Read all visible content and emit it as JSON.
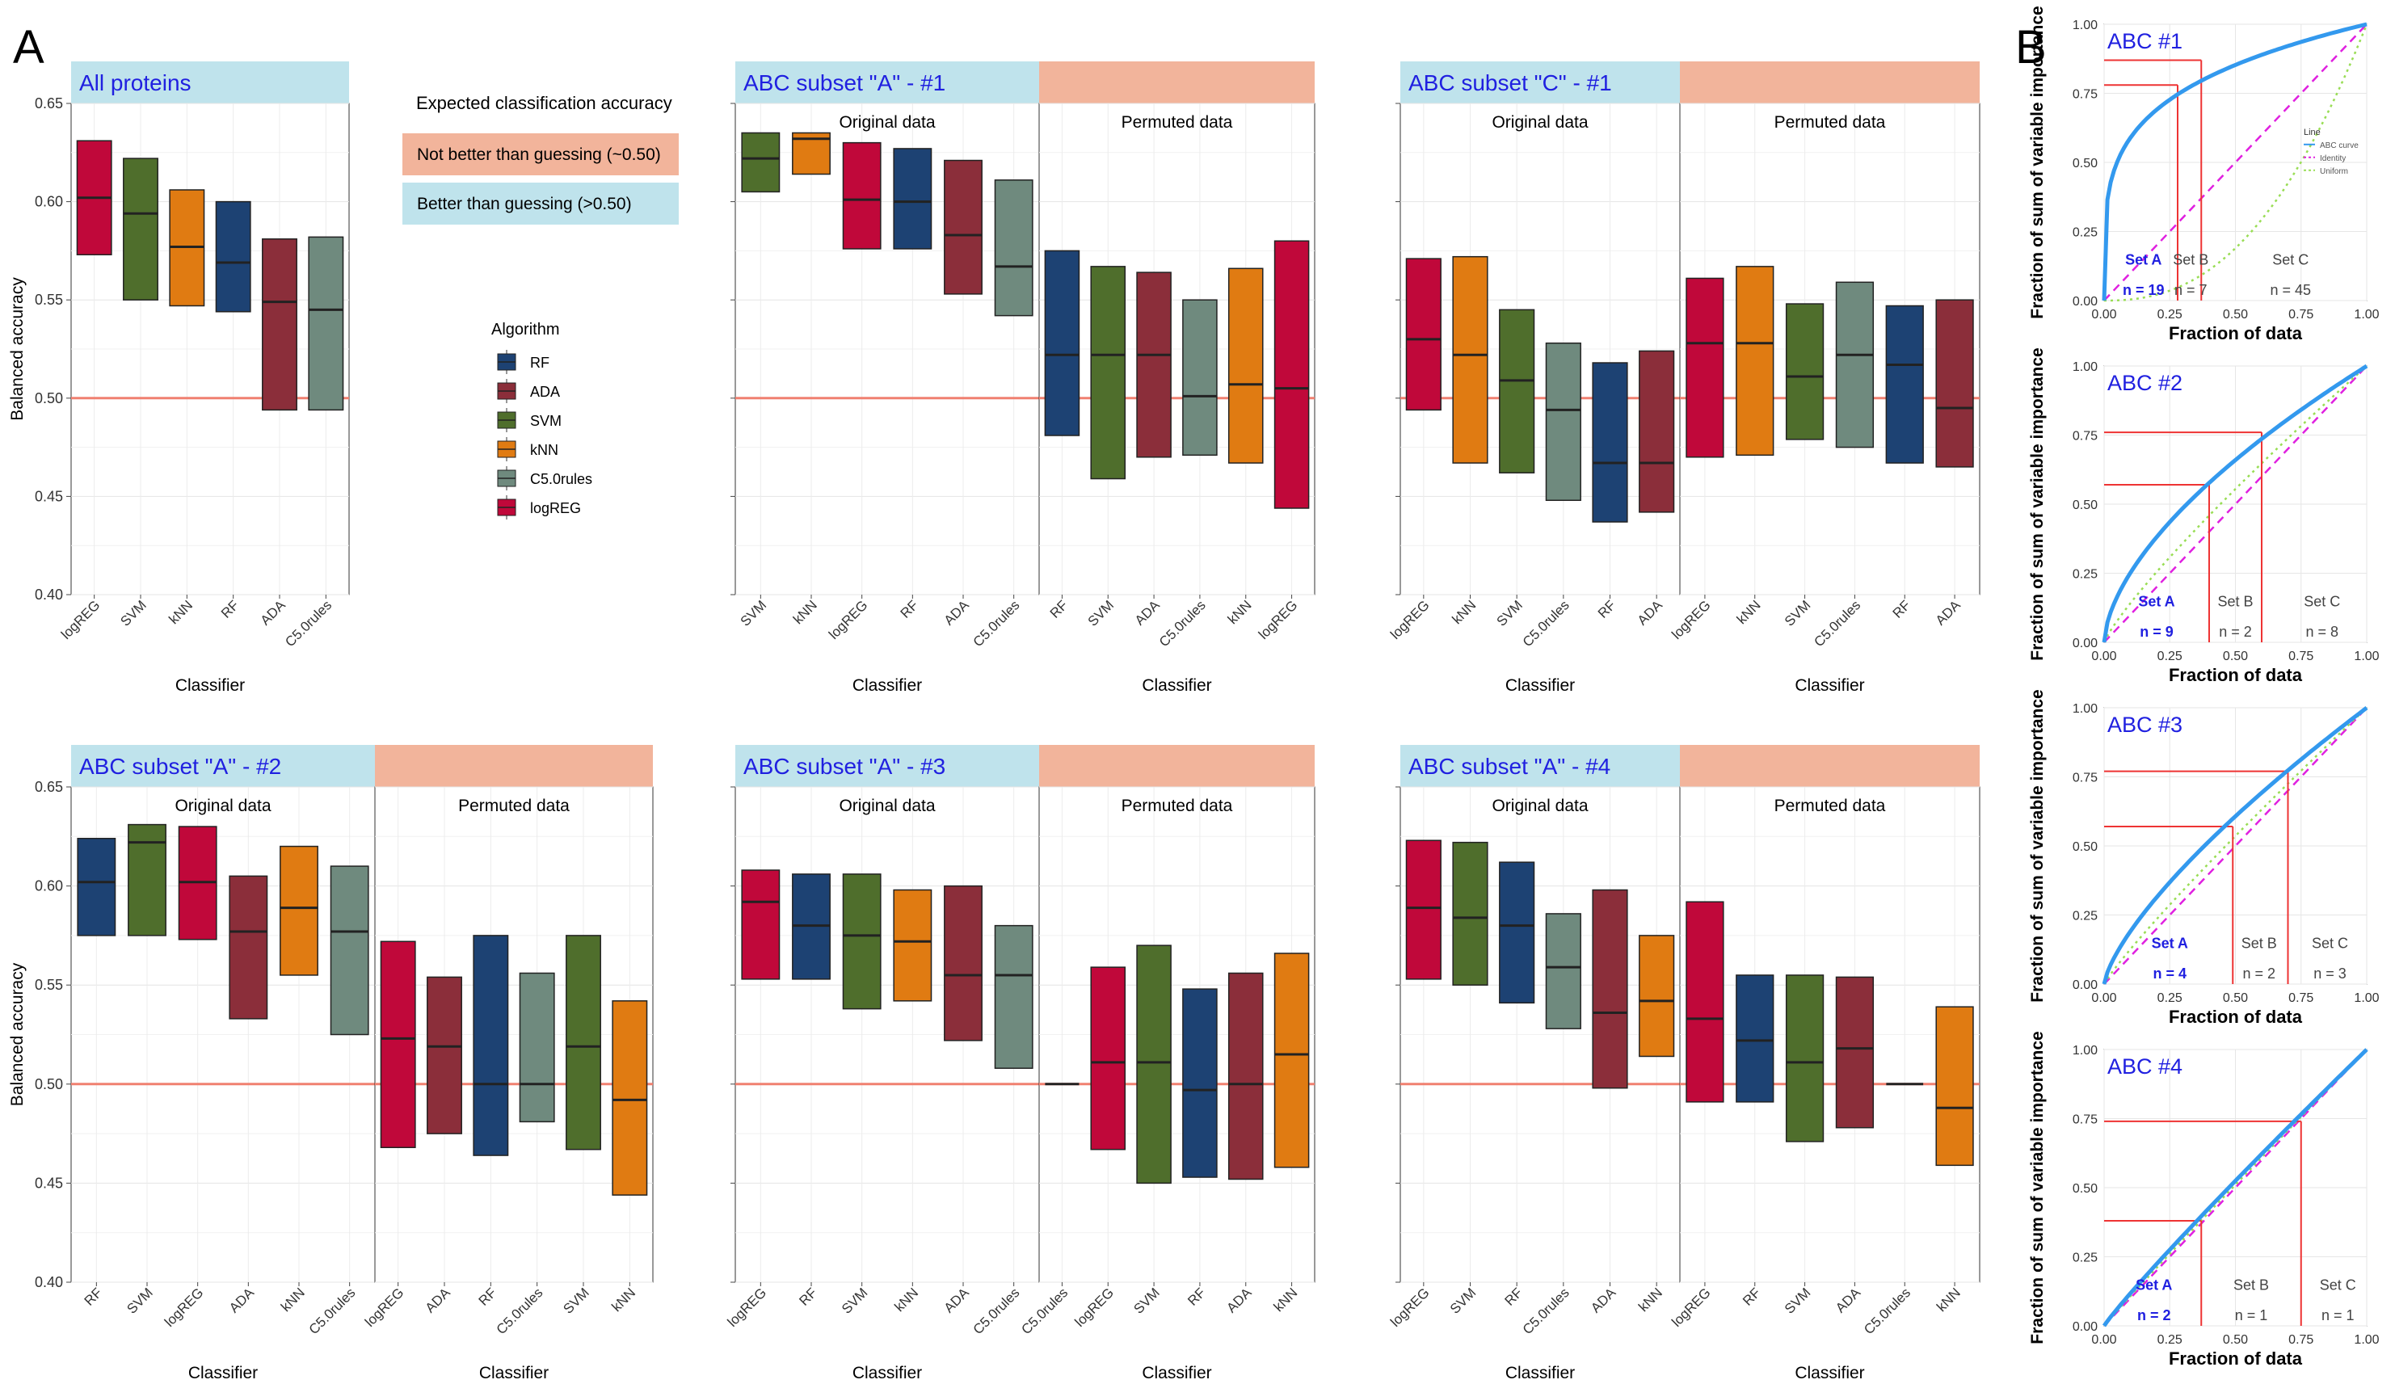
{
  "panel_labels": {
    "a": "A",
    "b": "B"
  },
  "colors": {
    "RF": "#1d4273",
    "ADA": "#8b2e3a",
    "SVM": "#4f6e2c",
    "kNN": "#e07b12",
    "C5.0rules": "#6f8a7e",
    "logREG": "#c0083a",
    "blue_strip": "#bfe3ec",
    "salmon_strip": "#f2b49b",
    "ref_line": "#f08070",
    "title_text": "#2020e0",
    "abc_curve": "#3399ee",
    "identity": "#e020e0",
    "uniform": "#99dd55",
    "cut_line": "#ee3333"
  },
  "legend": {
    "accuracy_title": "Expected classification accuracy",
    "not_better": "Not better than guessing (~0.50)",
    "better": "Better than guessing (>0.50)",
    "algorithm_title": "Algorithm",
    "algorithms": [
      "RF",
      "ADA",
      "SVM",
      "kNN",
      "C5.0rules",
      "logREG"
    ]
  },
  "chart_data": [
    {
      "type": "box",
      "title": "All proteins",
      "xlabel": "Classifier",
      "ylabel": "Balanced accuracy",
      "ylim": [
        0.4,
        0.65
      ],
      "yticks": [
        "0.40",
        "0.45",
        "0.50",
        "0.55",
        "0.60",
        "0.65"
      ],
      "reference_line": 0.5,
      "facets": [
        {
          "label": "",
          "boxes": [
            {
              "name": "logREG",
              "low": 0.573,
              "mid": 0.602,
              "high": 0.631
            },
            {
              "name": "SVM",
              "low": 0.55,
              "mid": 0.594,
              "high": 0.622
            },
            {
              "name": "kNN",
              "low": 0.547,
              "mid": 0.577,
              "high": 0.606
            },
            {
              "name": "RF",
              "low": 0.544,
              "mid": 0.569,
              "high": 0.6
            },
            {
              "name": "ADA",
              "low": 0.494,
              "mid": 0.549,
              "high": 0.581
            },
            {
              "name": "C5.0rules",
              "low": 0.494,
              "mid": 0.545,
              "high": 0.582
            }
          ]
        }
      ]
    },
    {
      "type": "box",
      "title": "ABC subset \"A\" - #1",
      "xlabel": "Classifier",
      "ylim": [
        0.4,
        0.65
      ],
      "reference_line": 0.5,
      "facets": [
        {
          "label": "Original data",
          "boxes": [
            {
              "name": "SVM",
              "low": 0.605,
              "mid": 0.622,
              "high": 0.635
            },
            {
              "name": "kNN",
              "low": 0.614,
              "mid": 0.632,
              "high": 0.635
            },
            {
              "name": "logREG",
              "low": 0.576,
              "mid": 0.601,
              "high": 0.63
            },
            {
              "name": "RF",
              "low": 0.576,
              "mid": 0.6,
              "high": 0.627
            },
            {
              "name": "ADA",
              "low": 0.553,
              "mid": 0.583,
              "high": 0.621
            },
            {
              "name": "C5.0rules",
              "low": 0.542,
              "mid": 0.567,
              "high": 0.611
            }
          ]
        },
        {
          "label": "Permuted data",
          "boxes": [
            {
              "name": "RF",
              "low": 0.481,
              "mid": 0.522,
              "high": 0.575
            },
            {
              "name": "SVM",
              "low": 0.459,
              "mid": 0.522,
              "high": 0.567
            },
            {
              "name": "ADA",
              "low": 0.47,
              "mid": 0.522,
              "high": 0.564
            },
            {
              "name": "C5.0rules",
              "low": 0.471,
              "mid": 0.501,
              "high": 0.55
            },
            {
              "name": "kNN",
              "low": 0.467,
              "mid": 0.507,
              "high": 0.566
            },
            {
              "name": "logREG",
              "low": 0.444,
              "mid": 0.505,
              "high": 0.58
            }
          ]
        }
      ]
    },
    {
      "type": "box",
      "title": "ABC subset \"C\" - #1",
      "xlabel": "Classifier",
      "ylim": [
        0.4,
        0.65
      ],
      "reference_line": 0.5,
      "facets": [
        {
          "label": "Original data",
          "boxes": [
            {
              "name": "logREG",
              "low": 0.494,
              "mid": 0.53,
              "high": 0.571
            },
            {
              "name": "kNN",
              "low": 0.467,
              "mid": 0.522,
              "high": 0.572
            },
            {
              "name": "SVM",
              "low": 0.462,
              "mid": 0.509,
              "high": 0.545
            },
            {
              "name": "C5.0rules",
              "low": 0.448,
              "mid": 0.494,
              "high": 0.528
            },
            {
              "name": "RF",
              "low": 0.437,
              "mid": 0.467,
              "high": 0.518
            },
            {
              "name": "ADA",
              "low": 0.442,
              "mid": 0.467,
              "high": 0.524
            }
          ]
        },
        {
          "label": "Permuted data",
          "boxes": [
            {
              "name": "logREG",
              "low": 0.47,
              "mid": 0.528,
              "high": 0.561
            },
            {
              "name": "kNN",
              "low": 0.471,
              "mid": 0.528,
              "high": 0.567
            },
            {
              "name": "SVM",
              "low": 0.479,
              "mid": 0.511,
              "high": 0.548
            },
            {
              "name": "C5.0rules",
              "low": 0.475,
              "mid": 0.522,
              "high": 0.559
            },
            {
              "name": "RF",
              "low": 0.467,
              "mid": 0.517,
              "high": 0.547
            },
            {
              "name": "ADA",
              "low": 0.465,
              "mid": 0.495,
              "high": 0.55
            }
          ]
        }
      ]
    },
    {
      "type": "box",
      "title": "ABC subset \"A\" - #2",
      "xlabel": "Classifier",
      "ylabel": "Balanced accuracy",
      "ylim": [
        0.4,
        0.65
      ],
      "yticks": [
        "0.40",
        "0.45",
        "0.50",
        "0.55",
        "0.60",
        "0.65"
      ],
      "reference_line": 0.5,
      "facets": [
        {
          "label": "Original data",
          "boxes": [
            {
              "name": "RF",
              "low": 0.575,
              "mid": 0.602,
              "high": 0.624
            },
            {
              "name": "SVM",
              "low": 0.575,
              "mid": 0.622,
              "high": 0.631
            },
            {
              "name": "logREG",
              "low": 0.573,
              "mid": 0.602,
              "high": 0.63
            },
            {
              "name": "ADA",
              "low": 0.533,
              "mid": 0.577,
              "high": 0.605
            },
            {
              "name": "kNN",
              "low": 0.555,
              "mid": 0.589,
              "high": 0.62
            },
            {
              "name": "C5.0rules",
              "low": 0.525,
              "mid": 0.577,
              "high": 0.61
            }
          ]
        },
        {
          "label": "Permuted data",
          "boxes": [
            {
              "name": "logREG",
              "low": 0.468,
              "mid": 0.523,
              "high": 0.572
            },
            {
              "name": "ADA",
              "low": 0.475,
              "mid": 0.519,
              "high": 0.554
            },
            {
              "name": "RF",
              "low": 0.464,
              "mid": 0.5,
              "high": 0.575
            },
            {
              "name": "C5.0rules",
              "low": 0.481,
              "mid": 0.5,
              "high": 0.556
            },
            {
              "name": "SVM",
              "low": 0.467,
              "mid": 0.519,
              "high": 0.575
            },
            {
              "name": "kNN",
              "low": 0.444,
              "mid": 0.492,
              "high": 0.542
            }
          ]
        }
      ]
    },
    {
      "type": "box",
      "title": "ABC subset \"A\" - #3",
      "xlabel": "Classifier",
      "ylim": [
        0.4,
        0.65
      ],
      "reference_line": 0.5,
      "facets": [
        {
          "label": "Original data",
          "boxes": [
            {
              "name": "logREG",
              "low": 0.553,
              "mid": 0.592,
              "high": 0.608
            },
            {
              "name": "RF",
              "low": 0.553,
              "mid": 0.58,
              "high": 0.606
            },
            {
              "name": "SVM",
              "low": 0.538,
              "mid": 0.575,
              "high": 0.606
            },
            {
              "name": "kNN",
              "low": 0.542,
              "mid": 0.572,
              "high": 0.598
            },
            {
              "name": "ADA",
              "low": 0.522,
              "mid": 0.555,
              "high": 0.6
            },
            {
              "name": "C5.0rules",
              "low": 0.508,
              "mid": 0.555,
              "high": 0.58
            }
          ]
        },
        {
          "label": "Permuted data",
          "boxes": [
            {
              "name": "C5.0rules",
              "low": 0.5,
              "mid": 0.5,
              "high": 0.5
            },
            {
              "name": "logREG",
              "low": 0.467,
              "mid": 0.511,
              "high": 0.559
            },
            {
              "name": "SVM",
              "low": 0.45,
              "mid": 0.511,
              "high": 0.57
            },
            {
              "name": "RF",
              "low": 0.453,
              "mid": 0.497,
              "high": 0.548
            },
            {
              "name": "ADA",
              "low": 0.452,
              "mid": 0.5,
              "high": 0.556
            },
            {
              "name": "kNN",
              "low": 0.458,
              "mid": 0.515,
              "high": 0.566
            }
          ]
        }
      ]
    },
    {
      "type": "box",
      "title": "ABC subset \"A\" - #4",
      "xlabel": "Classifier",
      "ylim": [
        0.4,
        0.65
      ],
      "reference_line": 0.5,
      "facets": [
        {
          "label": "Original data",
          "boxes": [
            {
              "name": "logREG",
              "low": 0.553,
              "mid": 0.589,
              "high": 0.623
            },
            {
              "name": "SVM",
              "low": 0.55,
              "mid": 0.584,
              "high": 0.622
            },
            {
              "name": "RF",
              "low": 0.541,
              "mid": 0.58,
              "high": 0.612
            },
            {
              "name": "C5.0rules",
              "low": 0.528,
              "mid": 0.559,
              "high": 0.586
            },
            {
              "name": "ADA",
              "low": 0.498,
              "mid": 0.536,
              "high": 0.598
            },
            {
              "name": "kNN",
              "low": 0.514,
              "mid": 0.542,
              "high": 0.575
            }
          ]
        },
        {
          "label": "Permuted data",
          "boxes": [
            {
              "name": "logREG",
              "low": 0.491,
              "mid": 0.533,
              "high": 0.592
            },
            {
              "name": "RF",
              "low": 0.491,
              "mid": 0.522,
              "high": 0.555
            },
            {
              "name": "SVM",
              "low": 0.471,
              "mid": 0.511,
              "high": 0.555
            },
            {
              "name": "ADA",
              "low": 0.478,
              "mid": 0.518,
              "high": 0.554
            },
            {
              "name": "C5.0rules",
              "low": 0.5,
              "mid": 0.5,
              "high": 0.5
            },
            {
              "name": "kNN",
              "low": 0.459,
              "mid": 0.488,
              "high": 0.539
            }
          ]
        }
      ]
    },
    {
      "type": "line",
      "title": "ABC #1",
      "xlabel": "Fraction of data",
      "ylabel": "Fraction of sum of variable importance",
      "xlim": [
        0,
        1
      ],
      "ylim": [
        0,
        1
      ],
      "ticks": [
        "0.00",
        "0.25",
        "0.50",
        "0.75",
        "1.00"
      ],
      "power": 0.23,
      "uniform_power": 2.4,
      "cut_x": [
        0.28,
        0.37
      ],
      "cut_y": [
        0.78,
        0.87
      ],
      "sets": [
        {
          "name": "Set A",
          "n": "n = 19",
          "x": 0.15
        },
        {
          "name": "Set B",
          "n": "n = 7",
          "x": 0.33
        },
        {
          "name": "Set C",
          "n": "n = 45",
          "x": 0.71
        }
      ],
      "legend": {
        "title": "Line",
        "items": [
          "ABC curve",
          "Identity",
          "Uniform"
        ]
      }
    },
    {
      "type": "line",
      "title": "ABC #2",
      "xlabel": "Fraction of data",
      "ylabel": "Fraction of sum of variable importance",
      "xlim": [
        0,
        1
      ],
      "ylim": [
        0,
        1
      ],
      "ticks": [
        "0.00",
        "0.25",
        "0.50",
        "0.75",
        "1.00"
      ],
      "power": 0.6,
      "uniform_power": 0.85,
      "cut_x": [
        0.4,
        0.6
      ],
      "cut_y": [
        0.57,
        0.76
      ],
      "sets": [
        {
          "name": "Set A",
          "n": "n = 9",
          "x": 0.2
        },
        {
          "name": "Set B",
          "n": "n = 2",
          "x": 0.5
        },
        {
          "name": "Set C",
          "n": "n = 8",
          "x": 0.83
        }
      ]
    },
    {
      "type": "line",
      "title": "ABC #3",
      "xlabel": "Fraction of data",
      "ylabel": "Fraction of sum of variable importance",
      "xlim": [
        0,
        1
      ],
      "ylim": [
        0,
        1
      ],
      "ticks": [
        "0.00",
        "0.25",
        "0.50",
        "0.75",
        "1.00"
      ],
      "power": 0.72,
      "uniform_power": 0.9,
      "cut_x": [
        0.49,
        0.7
      ],
      "cut_y": [
        0.57,
        0.77
      ],
      "sets": [
        {
          "name": "Set A",
          "n": "n = 4",
          "x": 0.25
        },
        {
          "name": "Set B",
          "n": "n = 2",
          "x": 0.59
        },
        {
          "name": "Set C",
          "n": "n = 3",
          "x": 0.86
        }
      ]
    },
    {
      "type": "line",
      "title": "ABC #4",
      "xlabel": "Fraction of data",
      "ylabel": "Fraction of sum of variable importance",
      "xlim": [
        0,
        1
      ],
      "ylim": [
        0,
        1
      ],
      "ticks": [
        "0.00",
        "0.25",
        "0.50",
        "0.75",
        "1.00"
      ],
      "power": 0.93,
      "uniform_power": 0.97,
      "cut_x": [
        0.37,
        0.75
      ],
      "cut_y": [
        0.38,
        0.74
      ],
      "sets": [
        {
          "name": "Set A",
          "n": "n = 2",
          "x": 0.19
        },
        {
          "name": "Set B",
          "n": "n = 1",
          "x": 0.56
        },
        {
          "name": "Set C",
          "n": "n = 1",
          "x": 0.89
        }
      ]
    }
  ]
}
